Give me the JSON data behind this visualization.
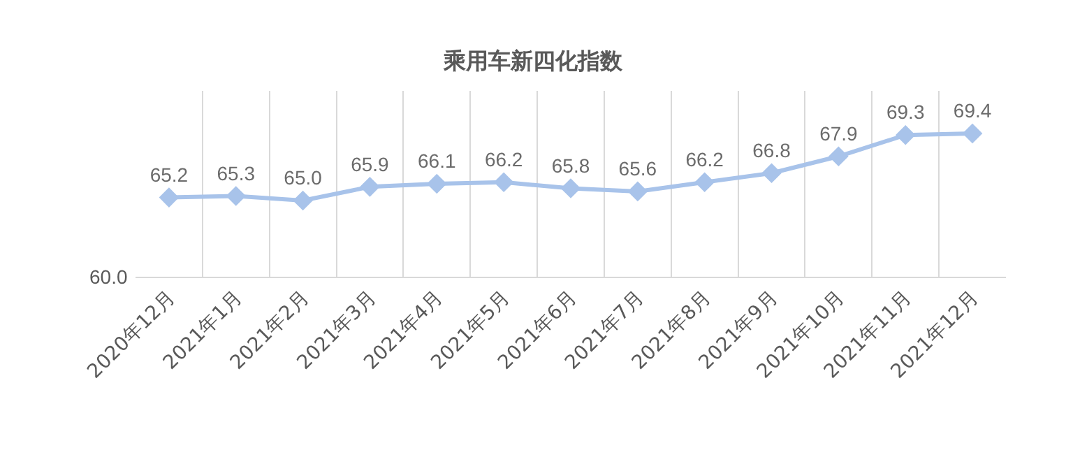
{
  "chart_data": {
    "type": "line",
    "title": "乘用车新四化指数",
    "categories": [
      "2020年12月",
      "2021年1月",
      "2021年2月",
      "2021年3月",
      "2021年4月",
      "2021年5月",
      "2021年6月",
      "2021年7月",
      "2021年8月",
      "2021年9月",
      "2021年10月",
      "2021年11月",
      "2021年12月"
    ],
    "series": [
      {
        "color": "#a8c3ea",
        "values": [
          65.2,
          65.3,
          65.0,
          65.9,
          66.1,
          66.2,
          65.8,
          65.6,
          66.2,
          66.8,
          67.9,
          69.3,
          69.4
        ],
        "value_labels": [
          "65.2",
          "65.3",
          "65.0",
          "65.9",
          "66.1",
          "66.2",
          "65.8",
          "65.6",
          "66.2",
          "66.8",
          "67.9",
          "69.3",
          "69.4"
        ]
      }
    ],
    "ylim": [
      60,
      72.2
    ],
    "annotations": [
      "60.0"
    ],
    "grid": "x",
    "marker": "diamond",
    "line_style": "solid",
    "legend": false
  }
}
